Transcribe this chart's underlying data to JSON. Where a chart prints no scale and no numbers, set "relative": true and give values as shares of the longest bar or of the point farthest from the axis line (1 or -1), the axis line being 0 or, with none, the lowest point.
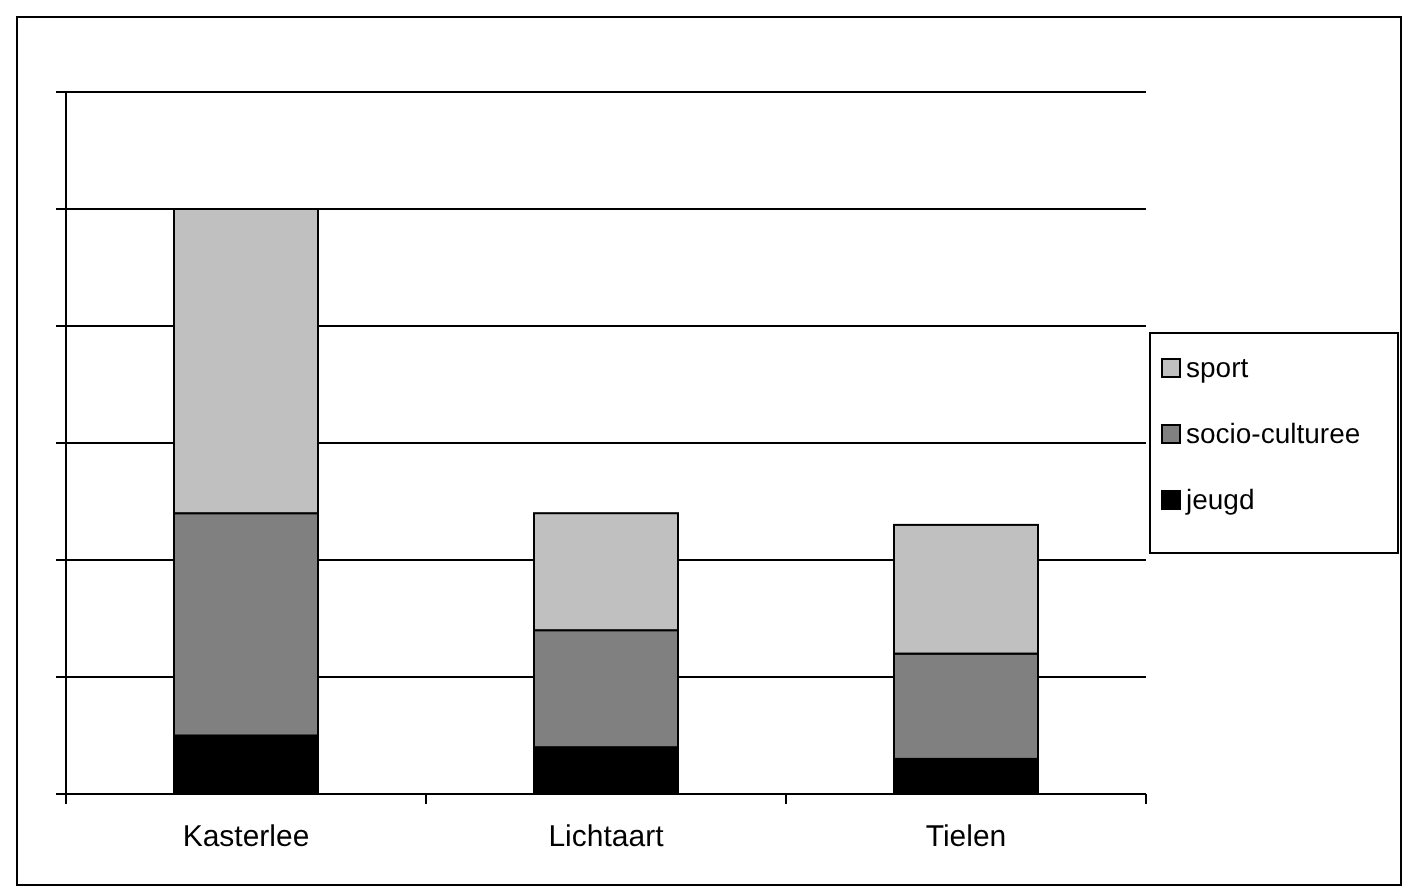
{
  "chart_data": {
    "type": "bar",
    "stacked": true,
    "relative": true,
    "grid": "y",
    "legend": "right",
    "categories": [
      "Kasterlee",
      "Lichtaart",
      "Tielen"
    ],
    "series": [
      {
        "name": "jeugd",
        "color": "#000000",
        "values": [
          0.1,
          0.08,
          0.06
        ]
      },
      {
        "name": "socio-culturee",
        "color": "#808080",
        "values": [
          0.38,
          0.2,
          0.18
        ]
      },
      {
        "name": "sport",
        "color": "#c0c0c0",
        "values": [
          0.52,
          0.2,
          0.22
        ]
      }
    ]
  }
}
